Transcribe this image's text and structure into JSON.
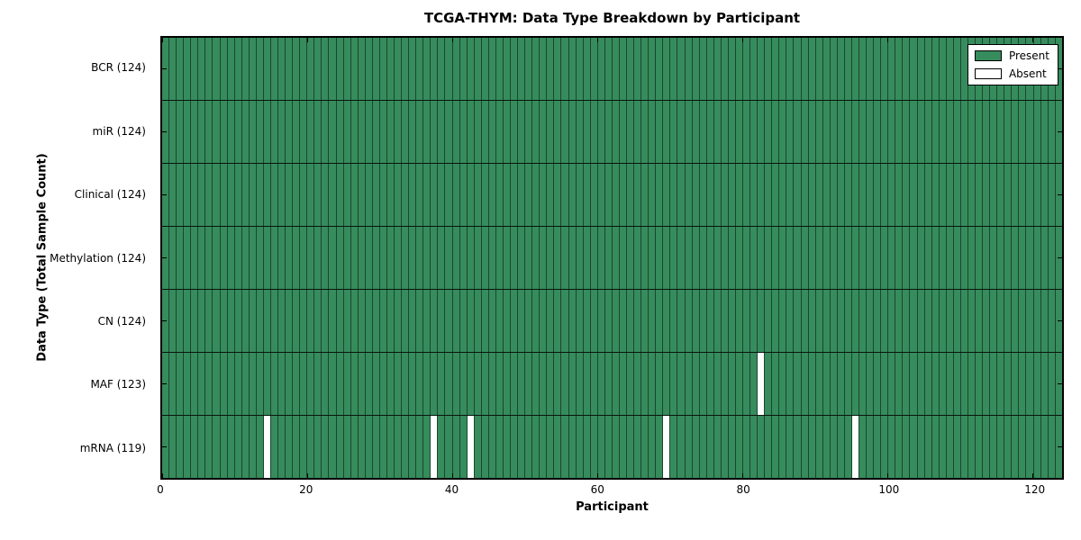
{
  "colors": {
    "present": "#368C5C",
    "absent": "#FFFFFF",
    "cell_edge": "#1B4631",
    "row_divider": "#09150E",
    "axis": "#000000",
    "background": "#FFFFFF"
  },
  "chart_data": {
    "type": "heatmap",
    "title": "TCGA-THYM: Data Type Breakdown by Participant",
    "xlabel": "Participant",
    "ylabel": "Data Type (Total Sample Count)",
    "xlim": [
      0,
      124
    ],
    "n_participants": 124,
    "x_ticks": [
      0,
      20,
      40,
      60,
      80,
      100,
      120
    ],
    "grid": "cell-edges-only",
    "legend_position": "upper right",
    "legend": [
      {
        "label": "Present",
        "state": "present"
      },
      {
        "label": "Absent",
        "state": "absent"
      }
    ],
    "rows": [
      {
        "label": "BCR (124)",
        "data_type": "BCR",
        "present_count": 124,
        "absent_participants": []
      },
      {
        "label": "miR (124)",
        "data_type": "miR",
        "present_count": 124,
        "absent_participants": []
      },
      {
        "label": "Clinical (124)",
        "data_type": "Clinical",
        "present_count": 124,
        "absent_participants": []
      },
      {
        "label": "Methylation (124)",
        "data_type": "Methylation",
        "present_count": 124,
        "absent_participants": []
      },
      {
        "label": "CN (124)",
        "data_type": "CN",
        "present_count": 124,
        "absent_participants": []
      },
      {
        "label": "MAF (123)",
        "data_type": "MAF",
        "present_count": 123,
        "absent_participants": [
          82
        ]
      },
      {
        "label": "mRNA (119)",
        "data_type": "mRNA",
        "present_count": 119,
        "absent_participants": [
          14,
          37,
          42,
          69,
          95
        ]
      }
    ]
  }
}
